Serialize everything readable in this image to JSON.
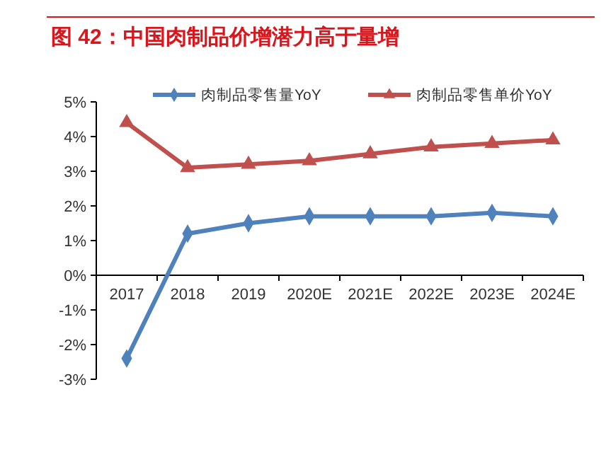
{
  "chart_data": {
    "type": "line",
    "title": "图 42：中国肉制品价增潜力高于量增",
    "categories": [
      "2017",
      "2018",
      "2019",
      "2020E",
      "2021E",
      "2022E",
      "2023E",
      "2024E"
    ],
    "series": [
      {
        "name": "肉制品零售量YoY",
        "color": "#4f81bd",
        "marker": "diamond",
        "values": [
          -2.4,
          1.2,
          1.5,
          1.7,
          1.7,
          1.7,
          1.8,
          1.7
        ]
      },
      {
        "name": "肉制品零售单价YoY",
        "color": "#c0504d",
        "marker": "triangle",
        "values": [
          4.4,
          3.1,
          3.2,
          3.3,
          3.5,
          3.7,
          3.8,
          3.9
        ]
      }
    ],
    "ylim": [
      -3,
      5
    ],
    "yticks": [
      {
        "value": -3,
        "label": "-3%"
      },
      {
        "value": -2,
        "label": "-2%"
      },
      {
        "value": -1,
        "label": "-1%"
      },
      {
        "value": 0,
        "label": "0%"
      },
      {
        "value": 1,
        "label": "1%"
      },
      {
        "value": 2,
        "label": "2%"
      },
      {
        "value": 3,
        "label": "3%"
      },
      {
        "value": 4,
        "label": "4%"
      },
      {
        "value": 5,
        "label": "5%"
      }
    ],
    "legend": "top",
    "grid": false,
    "line_style": "solid"
  }
}
